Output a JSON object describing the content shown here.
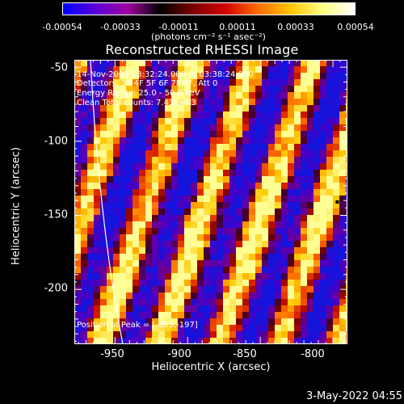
{
  "colorbar": {
    "ticks": [
      "-0.00054",
      "-0.00033",
      "-0.00011",
      "0.00011",
      "0.00033",
      "0.00054"
    ],
    "units": "(photons cm⁻² s⁻¹ asec⁻²)",
    "colors": [
      "#0000ff",
      "#5a00d6",
      "#a000a0",
      "#000000",
      "#7a0000",
      "#d10000",
      "#ff6a00",
      "#ffc400",
      "#ffff80",
      "#ffffff"
    ]
  },
  "chart_data": {
    "type": "heatmap",
    "title": "Reconstructed RHESSI Image",
    "xlabel": "Heliocentric X (arcsec)",
    "ylabel": "Heliocentric Y (arcsec)",
    "xlim": [
      -978,
      -790
    ],
    "ylim": [
      -237,
      -45
    ],
    "xticks": [
      "-950",
      "-900",
      "-850",
      "-800"
    ],
    "yticks": [
      "-50",
      "-100",
      "-150",
      "-200"
    ],
    "info_lines": [
      "14-Nov-2005 03:32:24.000 to 03:38:24.000",
      "Detectors: 3F 4F 5F 6F 7F 8F, Att 0",
      "Energy Range: 25.0 - 50.0 keV",
      "Clean     Total counts: 7.43E+03"
    ],
    "peak_label": "Position of Peak = [-885,-197]",
    "peak": [
      -885,
      -197
    ],
    "pattern": "diagonal stripes, alternating high (yellow/red) and low (blue/purple) intensity"
  },
  "timestamp": "3-May-2022 04:55"
}
